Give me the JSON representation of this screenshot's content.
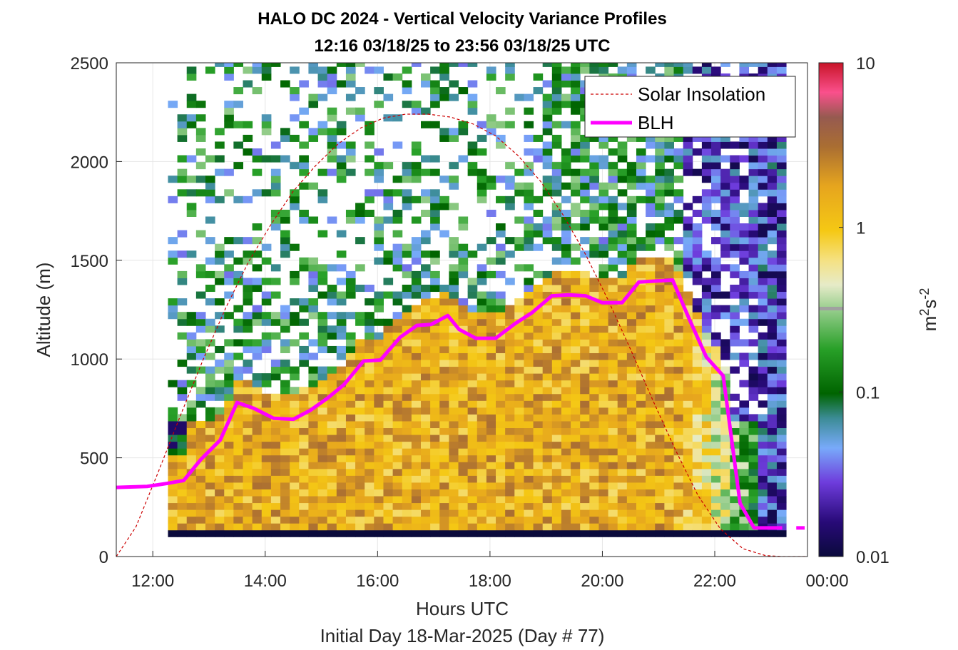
{
  "chart_data": {
    "type": "heatmap",
    "title": "HALO DC 2024 - Vertical Velocity Variance Profiles",
    "subtitle": "12:16 03/18/25 to 23:56 03/18/25  UTC",
    "xlabel": "Hours UTC",
    "footer": "Initial Day 18-Mar-2025 (Day # 77)",
    "ylabel": "Altitude (m)",
    "x_ticks": [
      "12:00",
      "14:00",
      "16:00",
      "18:00",
      "20:00",
      "22:00",
      "00:00"
    ],
    "x_tick_hours": [
      12,
      14,
      16,
      18,
      20,
      22,
      24
    ],
    "xlim_hours": [
      11.35,
      23.65
    ],
    "y_ticks": [
      "0",
      "500",
      "1000",
      "1500",
      "2000",
      "2500"
    ],
    "y_tick_values": [
      0,
      500,
      1000,
      1500,
      2000,
      2500
    ],
    "ylim": [
      0,
      2500
    ],
    "grid": true,
    "colorbar": {
      "scale": "log",
      "range": [
        0.01,
        10
      ],
      "ticks": [
        "10",
        "1",
        "0.1",
        "0.01"
      ],
      "tick_values": [
        10,
        1,
        0.1,
        0.01
      ],
      "label_base": "m",
      "label_sup1": "2",
      "label_mid": "s",
      "label_sup2": "-2"
    },
    "legend": {
      "placement": "top-right",
      "entries": [
        {
          "label": "Solar Insolation",
          "style": "dashed",
          "color": "#cc0000"
        },
        {
          "label": "BLH",
          "style": "solid",
          "color": "#ff00ff"
        }
      ]
    },
    "series": [
      {
        "name": "BLH",
        "x_hours": [
          11.35,
          11.9,
          12.25,
          12.55,
          12.85,
          13.2,
          13.5,
          13.8,
          14.15,
          14.5,
          14.8,
          15.1,
          15.4,
          15.75,
          16.05,
          16.4,
          16.7,
          16.95,
          17.25,
          17.45,
          17.75,
          18.1,
          18.45,
          18.75,
          19.1,
          19.4,
          19.7,
          20.0,
          20.35,
          20.65,
          20.95,
          21.25,
          21.55,
          21.85,
          22.15,
          22.45,
          22.7,
          22.95,
          23.2
        ],
        "y": [
          350,
          355,
          370,
          385,
          490,
          590,
          780,
          750,
          700,
          695,
          740,
          800,
          870,
          990,
          995,
          1110,
          1170,
          1175,
          1220,
          1150,
          1105,
          1105,
          1180,
          1235,
          1320,
          1325,
          1320,
          1285,
          1285,
          1390,
          1395,
          1400,
          1200,
          1010,
          915,
          270,
          145,
          145,
          145
        ]
      },
      {
        "name": "Solar Insolation",
        "x_hours": [
          11.35,
          11.7,
          12.1,
          12.5,
          12.9,
          13.3,
          13.7,
          14.1,
          14.5,
          14.9,
          15.3,
          15.7,
          16.1,
          16.5,
          16.9,
          17.3,
          17.7,
          18.1,
          18.5,
          18.9,
          19.3,
          19.7,
          20.1,
          20.5,
          20.9,
          21.3,
          21.7,
          22.1,
          22.5,
          22.9,
          23.2,
          23.65
        ],
        "y": [
          0,
          150,
          430,
          720,
          1000,
          1260,
          1490,
          1680,
          1850,
          1980,
          2090,
          2170,
          2220,
          2240,
          2240,
          2225,
          2190,
          2130,
          2030,
          1900,
          1730,
          1530,
          1300,
          1050,
          790,
          540,
          310,
          140,
          40,
          5,
          0,
          0
        ]
      }
    ]
  }
}
